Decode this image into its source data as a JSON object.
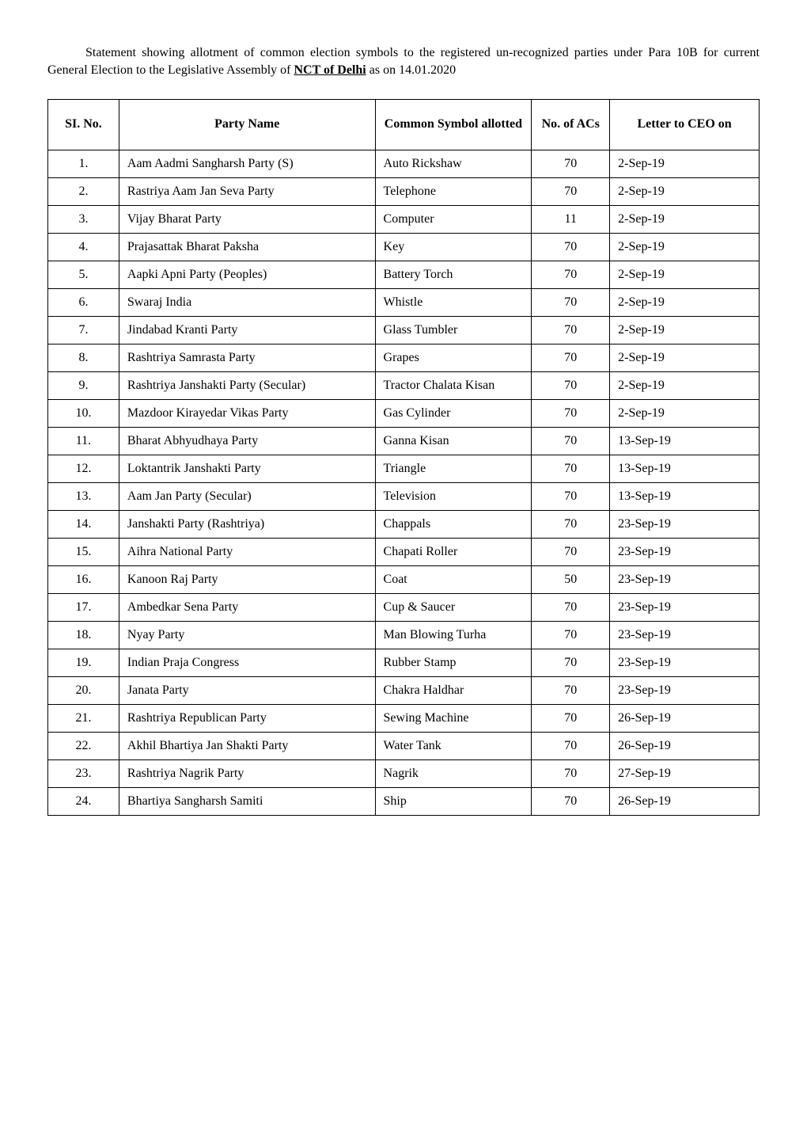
{
  "intro": {
    "before": "Statement showing allotment of common election symbols to the registered un-recognized parties under Para 10B for current General Election to the Legislative Assembly of ",
    "bold_underline": "NCT of Delhi",
    "after": " as on 14.01.2020"
  },
  "table": {
    "headers": {
      "sino": "SI. No.",
      "party": "Party Name",
      "symbol": "Common Symbol allotted",
      "acs": "No. of ACs",
      "letter": "Letter to CEO on"
    },
    "rows": [
      {
        "sino": "1.",
        "party": "Aam Aadmi Sangharsh Party (S)",
        "symbol": "Auto Rickshaw",
        "acs": "70",
        "letter": "2-Sep-19"
      },
      {
        "sino": "2.",
        "party": "Rastriya Aam Jan Seva Party",
        "symbol": "Telephone",
        "acs": "70",
        "letter": "2-Sep-19"
      },
      {
        "sino": "3.",
        "party": "Vijay Bharat Party",
        "symbol": "Computer",
        "acs": "11",
        "letter": "2-Sep-19"
      },
      {
        "sino": "4.",
        "party": "Prajasattak Bharat Paksha",
        "symbol": "Key",
        "acs": "70",
        "letter": "2-Sep-19"
      },
      {
        "sino": "5.",
        "party": "Aapki Apni Party (Peoples)",
        "symbol": "Battery Torch",
        "acs": "70",
        "letter": "2-Sep-19"
      },
      {
        "sino": "6.",
        "party": "Swaraj India",
        "symbol": "Whistle",
        "acs": "70",
        "letter": "2-Sep-19"
      },
      {
        "sino": "7.",
        "party": "Jindabad Kranti Party",
        "symbol": "Glass Tumbler",
        "acs": "70",
        "letter": "2-Sep-19"
      },
      {
        "sino": "8.",
        "party": "Rashtriya Samrasta Party",
        "symbol": "Grapes",
        "acs": "70",
        "letter": "2-Sep-19"
      },
      {
        "sino": "9.",
        "party": "Rashtriya Janshakti Party (Secular)",
        "symbol": "Tractor Chalata Kisan",
        "acs": "70",
        "letter": "2-Sep-19"
      },
      {
        "sino": "10.",
        "party": "Mazdoor Kirayedar Vikas Party",
        "symbol": "Gas Cylinder",
        "acs": "70",
        "letter": "2-Sep-19"
      },
      {
        "sino": "11.",
        "party": "Bharat Abhyudhaya Party",
        "symbol": "Ganna Kisan",
        "acs": "70",
        "letter": "13-Sep-19"
      },
      {
        "sino": "12.",
        "party": "Loktantrik Janshakti Party",
        "symbol": "Triangle",
        "acs": "70",
        "letter": "13-Sep-19"
      },
      {
        "sino": "13.",
        "party": "Aam Jan Party (Secular)",
        "symbol": "Television",
        "acs": "70",
        "letter": "13-Sep-19"
      },
      {
        "sino": "14.",
        "party": "Janshakti Party (Rashtriya)",
        "symbol": "Chappals",
        "acs": "70",
        "letter": "23-Sep-19"
      },
      {
        "sino": "15.",
        "party": "Aihra National Party",
        "symbol": "Chapati Roller",
        "acs": "70",
        "letter": "23-Sep-19"
      },
      {
        "sino": "16.",
        "party": "Kanoon Raj Party",
        "symbol": "Coat",
        "acs": "50",
        "letter": "23-Sep-19"
      },
      {
        "sino": "17.",
        "party": "Ambedkar Sena Party",
        "symbol": "Cup & Saucer",
        "acs": "70",
        "letter": "23-Sep-19"
      },
      {
        "sino": "18.",
        "party": "Nyay Party",
        "symbol": "Man Blowing Turha",
        "acs": "70",
        "letter": "23-Sep-19"
      },
      {
        "sino": "19.",
        "party": "Indian Praja Congress",
        "symbol": "Rubber Stamp",
        "acs": "70",
        "letter": "23-Sep-19"
      },
      {
        "sino": "20.",
        "party": "Janata Party",
        "symbol": "Chakra Haldhar",
        "acs": "70",
        "letter": "23-Sep-19"
      },
      {
        "sino": "21.",
        "party": "Rashtriya Republican Party",
        "symbol": "Sewing Machine",
        "acs": "70",
        "letter": "26-Sep-19"
      },
      {
        "sino": "22.",
        "party": "Akhil Bhartiya Jan Shakti Party",
        "symbol": "Water Tank",
        "acs": "70",
        "letter": "26-Sep-19"
      },
      {
        "sino": "23.",
        "party": "Rashtriya Nagrik Party",
        "symbol": "Nagrik",
        "acs": "70",
        "letter": "27-Sep-19"
      },
      {
        "sino": "24.",
        "party": "Bhartiya Sangharsh Samiti",
        "symbol": "Ship",
        "acs": "70",
        "letter": "26-Sep-19"
      }
    ]
  }
}
